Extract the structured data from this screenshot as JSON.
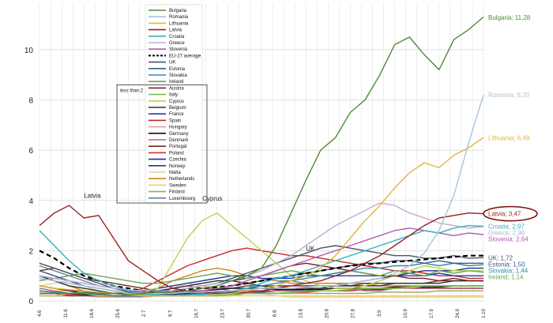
{
  "chart_data": {
    "type": "line",
    "grid": true,
    "ylim": [
      0,
      11.6
    ],
    "y_ticks": [
      0,
      2,
      4,
      6,
      8,
      10
    ],
    "x_tick_labels": [
      "4.6",
      "11.6",
      "18.6",
      "25.6",
      "2.7",
      "9.7",
      "16.7",
      "23.7",
      "30.7",
      "6.8",
      "13.8",
      "20.8",
      "27.8",
      "3.9",
      "10.9",
      "17.9",
      "24.9",
      "1.10"
    ],
    "legend_position": "upper-left-center",
    "legend_note": "less than 2",
    "series": [
      {
        "name": "Bulgaria",
        "color": "#4e8a3a",
        "end_label": "Bulgaria; 11,28",
        "end": 11.28,
        "values": [
          0.3,
          0.3,
          0.3,
          0.35,
          0.3,
          0.3,
          0.25,
          0.3,
          0.35,
          0.35,
          0.4,
          0.5,
          0.6,
          0.8,
          1.0,
          1.3,
          2.2,
          3.5,
          4.8,
          6.0,
          6.5,
          7.5,
          8.0,
          9.0,
          10.2,
          10.5,
          9.8,
          9.2,
          10.4,
          10.8,
          11.3
        ]
      },
      {
        "name": "Romania",
        "color": "#a8c4dc",
        "end_label": "Romania; 8,20",
        "end": 8.2,
        "values": [
          0.9,
          0.8,
          0.7,
          0.6,
          0.5,
          0.4,
          0.3,
          0.3,
          0.3,
          0.3,
          0.35,
          0.35,
          0.4,
          0.4,
          0.45,
          0.5,
          0.5,
          0.5,
          0.55,
          0.6,
          0.6,
          0.7,
          0.8,
          0.9,
          1.1,
          1.4,
          1.9,
          2.8,
          4.2,
          6.3,
          8.2
        ]
      },
      {
        "name": "Lithuania",
        "color": "#e0b83a",
        "end_label": "Lithuania; 6,49",
        "end": 6.49,
        "values": [
          0.6,
          0.5,
          0.45,
          0.4,
          0.35,
          0.3,
          0.25,
          0.2,
          0.2,
          0.2,
          0.2,
          0.2,
          0.25,
          0.3,
          0.4,
          0.5,
          0.6,
          0.8,
          1.0,
          1.3,
          1.8,
          2.5,
          3.2,
          3.8,
          4.5,
          5.1,
          5.5,
          5.3,
          5.8,
          6.1,
          6.5
        ]
      },
      {
        "name": "Latvia",
        "color": "#9c1f1f",
        "end_label": "Latvia; 3,47",
        "end": 3.47,
        "values": [
          3.0,
          3.5,
          3.8,
          3.3,
          3.4,
          2.5,
          1.6,
          1.2,
          0.8,
          0.5,
          0.4,
          0.35,
          0.3,
          0.3,
          0.35,
          0.4,
          0.5,
          0.6,
          0.7,
          0.8,
          1.0,
          1.2,
          1.5,
          1.8,
          2.2,
          2.6,
          3.0,
          3.3,
          3.4,
          3.5,
          3.47
        ]
      },
      {
        "name": "Croatia",
        "color": "#39b0c0",
        "end_label": "Croatia; 2,97",
        "end": 2.97,
        "values": [
          2.8,
          2.2,
          1.6,
          1.1,
          0.8,
          0.6,
          0.4,
          0.3,
          0.25,
          0.2,
          0.2,
          0.25,
          0.3,
          0.4,
          0.5,
          0.7,
          0.9,
          1.0,
          1.2,
          1.4,
          1.6,
          1.8,
          2.0,
          2.2,
          2.4,
          2.6,
          2.8,
          2.7,
          2.9,
          3.0,
          2.97
        ]
      },
      {
        "name": "Greece",
        "color": "#b8b0d4",
        "end_label": "Greece; 2,96",
        "end": 2.96,
        "values": [
          1.0,
          0.9,
          0.8,
          0.7,
          0.6,
          0.5,
          0.45,
          0.4,
          0.4,
          0.4,
          0.5,
          0.6,
          0.7,
          0.8,
          1.0,
          1.2,
          1.5,
          1.8,
          2.2,
          2.6,
          3.0,
          3.3,
          3.6,
          3.9,
          3.8,
          3.5,
          3.3,
          3.1,
          3.0,
          2.9,
          2.96
        ]
      },
      {
        "name": "Slovenia",
        "color": "#b45ab4",
        "end_label": "Slovenia; 2,64",
        "end": 2.64,
        "values": [
          1.0,
          0.9,
          0.8,
          0.7,
          0.6,
          0.5,
          0.4,
          0.35,
          0.3,
          0.3,
          0.35,
          0.4,
          0.5,
          0.6,
          0.8,
          1.0,
          1.2,
          1.4,
          1.6,
          1.8,
          2.0,
          2.2,
          2.4,
          2.6,
          2.8,
          2.9,
          2.8,
          2.7,
          2.6,
          2.7,
          2.64
        ]
      },
      {
        "name": "EU-27 average",
        "color": "#000000",
        "dashed": true,
        "end": 1.8,
        "values": [
          2.0,
          1.7,
          1.3,
          1.0,
          0.8,
          0.6,
          0.5,
          0.4,
          0.4,
          0.4,
          0.45,
          0.5,
          0.55,
          0.6,
          0.7,
          0.8,
          0.9,
          1.0,
          1.1,
          1.2,
          1.3,
          1.4,
          1.45,
          1.5,
          1.55,
          1.6,
          1.65,
          1.7,
          1.75,
          1.8,
          1.8
        ]
      },
      {
        "name": "UK",
        "color": "#4a5468",
        "end_label": "UK; 1,72",
        "end": 1.72,
        "values": [
          1.5,
          1.3,
          1.1,
          0.9,
          0.7,
          0.5,
          0.35,
          0.3,
          0.35,
          0.4,
          0.5,
          0.6,
          0.7,
          0.9,
          1.1,
          1.3,
          1.5,
          1.7,
          1.9,
          2.1,
          2.2,
          2.1,
          2.0,
          1.9,
          1.8,
          1.8,
          1.7,
          1.7,
          1.8,
          1.7,
          1.72
        ]
      },
      {
        "name": "Estonia",
        "color": "#3c5a8a",
        "end_label": "Estonia; 1,50",
        "end": 1.5,
        "values": [
          1.2,
          1.0,
          0.8,
          0.6,
          0.5,
          0.4,
          0.3,
          0.3,
          0.3,
          0.3,
          0.35,
          0.4,
          0.5,
          0.6,
          0.7,
          0.8,
          0.9,
          1.0,
          1.1,
          1.2,
          1.3,
          1.4,
          1.5,
          1.5,
          1.6,
          1.6,
          1.5,
          1.6,
          1.5,
          1.5,
          1.5
        ]
      },
      {
        "name": "Slovakia",
        "color": "#2b8fa8",
        "end_label": "Slovakia; 1,44",
        "end": 1.44,
        "values": [
          0.4,
          0.35,
          0.3,
          0.3,
          0.25,
          0.2,
          0.2,
          0.2,
          0.2,
          0.2,
          0.25,
          0.3,
          0.35,
          0.4,
          0.5,
          0.6,
          0.7,
          0.8,
          0.9,
          1.0,
          1.1,
          1.2,
          1.3,
          1.3,
          1.4,
          1.4,
          1.5,
          1.4,
          1.5,
          1.4,
          1.44
        ]
      },
      {
        "name": "Ireland",
        "color": "#6aa84f",
        "end_label": "Ireland; 1,14",
        "end": 1.14,
        "values": [
          0.8,
          0.9,
          1.0,
          1.1,
          1.0,
          0.9,
          0.8,
          0.7,
          0.7,
          0.8,
          0.9,
          1.0,
          1.1,
          1.0,
          0.9,
          1.0,
          1.1,
          1.2,
          1.1,
          1.0,
          1.1,
          1.2,
          1.1,
          1.0,
          1.2,
          1.1,
          1.0,
          1.2,
          1.1,
          1.2,
          1.14
        ]
      },
      {
        "name": "Austria",
        "color": "#7a2323",
        "values": [
          0.6,
          0.5,
          0.4,
          0.4,
          0.3,
          0.3,
          0.3,
          0.3,
          0.35,
          0.4,
          0.5,
          0.6,
          0.7,
          0.8,
          0.9,
          1.0,
          1.2,
          1.4,
          1.5,
          1.4,
          1.3,
          1.2,
          1.1,
          1.0,
          1.0,
          0.9,
          0.9,
          0.8,
          0.9,
          0.8,
          0.8
        ]
      },
      {
        "name": "Italy",
        "color": "#6cc04a",
        "values": [
          0.9,
          0.8,
          0.7,
          0.6,
          0.5,
          0.4,
          0.3,
          0.25,
          0.2,
          0.2,
          0.2,
          0.2,
          0.2,
          0.25,
          0.3,
          0.3,
          0.3,
          0.35,
          0.4,
          0.4,
          0.4,
          0.45,
          0.5,
          0.5,
          0.5,
          0.55,
          0.6,
          0.6,
          0.6,
          0.6,
          0.6
        ]
      },
      {
        "name": "Cyprus",
        "color": "#b8d44a",
        "values": [
          0.2,
          0.2,
          0.3,
          0.3,
          0.2,
          0.2,
          0.3,
          0.4,
          0.5,
          1.5,
          2.5,
          3.2,
          3.5,
          3.0,
          2.5,
          2.0,
          1.5,
          1.0,
          0.8,
          0.6,
          0.5,
          0.5,
          0.6,
          0.8,
          1.0,
          1.2,
          1.4,
          1.3,
          1.2,
          1.2,
          1.2
        ]
      },
      {
        "name": "Belgium",
        "color": "#2f2f2f",
        "values": [
          1.0,
          0.8,
          0.6,
          0.5,
          0.4,
          0.3,
          0.3,
          0.3,
          0.4,
          0.5,
          0.6,
          0.7,
          0.8,
          0.8,
          0.7,
          0.6,
          0.5,
          0.5,
          0.5,
          0.5,
          0.6,
          0.6,
          0.6,
          0.6,
          0.7,
          0.7,
          0.7,
          0.7,
          0.8,
          0.8,
          0.8
        ]
      },
      {
        "name": "France",
        "color": "#1f3fae",
        "values": [
          0.6,
          0.5,
          0.4,
          0.3,
          0.3,
          0.3,
          0.3,
          0.4,
          0.5,
          0.6,
          0.7,
          0.8,
          0.9,
          1.0,
          1.0,
          0.9,
          0.9,
          0.9,
          1.0,
          1.0,
          1.0,
          1.0,
          1.0,
          1.0,
          1.0,
          1.0,
          1.0,
          1.1,
          1.0,
          1.0,
          1.0
        ]
      },
      {
        "name": "Spain",
        "color": "#c62828",
        "values": [
          0.3,
          0.3,
          0.2,
          0.2,
          0.2,
          0.2,
          0.3,
          0.5,
          0.8,
          1.1,
          1.4,
          1.6,
          1.8,
          2.0,
          2.1,
          2.0,
          1.9,
          1.8,
          1.8,
          1.7,
          1.6,
          1.5,
          1.4,
          1.3,
          1.2,
          1.2,
          1.1,
          1.0,
          1.0,
          0.9,
          0.9
        ]
      },
      {
        "name": "Hungary",
        "color": "#d9a0a0",
        "values": [
          0.2,
          0.2,
          0.2,
          0.2,
          0.15,
          0.15,
          0.15,
          0.15,
          0.2,
          0.2,
          0.2,
          0.2,
          0.2,
          0.25,
          0.3,
          0.3,
          0.3,
          0.35,
          0.4,
          0.4,
          0.4,
          0.45,
          0.5,
          0.5,
          0.5,
          0.5,
          0.6,
          0.6,
          0.6,
          0.6,
          0.6
        ]
      },
      {
        "name": "Germany",
        "color": "#111111",
        "values": [
          0.4,
          0.35,
          0.3,
          0.25,
          0.2,
          0.2,
          0.2,
          0.2,
          0.25,
          0.3,
          0.35,
          0.4,
          0.45,
          0.5,
          0.5,
          0.5,
          0.45,
          0.45,
          0.45,
          0.45,
          0.5,
          0.5,
          0.5,
          0.5,
          0.55,
          0.55,
          0.55,
          0.55,
          0.6,
          0.6,
          0.6
        ]
      },
      {
        "name": "Denmark",
        "color": "#c0607a",
        "values": [
          0.5,
          0.4,
          0.3,
          0.3,
          0.2,
          0.2,
          0.2,
          0.3,
          0.4,
          0.5,
          0.6,
          0.5,
          0.5,
          0.4,
          0.4,
          0.4,
          0.4,
          0.4,
          0.4,
          0.5,
          0.5,
          0.5,
          0.4,
          0.4,
          0.5,
          0.5,
          0.5,
          0.5,
          0.5,
          0.5,
          0.5
        ]
      },
      {
        "name": "Portugal",
        "color": "#6a2e1e",
        "values": [
          1.2,
          1.3,
          1.1,
          0.9,
          0.8,
          0.7,
          0.6,
          0.5,
          0.4,
          0.4,
          0.4,
          0.4,
          0.5,
          0.5,
          0.6,
          0.6,
          0.6,
          0.6,
          0.6,
          0.6,
          0.6,
          0.6,
          0.7,
          0.7,
          0.7,
          0.7,
          0.7,
          0.8,
          0.8,
          0.8,
          0.8
        ]
      },
      {
        "name": "Poland",
        "color": "#d62d2d",
        "values": [
          0.3,
          0.3,
          0.25,
          0.2,
          0.2,
          0.2,
          0.2,
          0.2,
          0.2,
          0.2,
          0.2,
          0.2,
          0.25,
          0.3,
          0.3,
          0.3,
          0.3,
          0.35,
          0.35,
          0.4,
          0.4,
          0.4,
          0.45,
          0.5,
          0.5,
          0.5,
          0.5,
          0.5,
          0.5,
          0.5,
          0.5
        ]
      },
      {
        "name": "Czechia",
        "color": "#1c2f8a",
        "values": [
          0.3,
          0.3,
          0.3,
          0.2,
          0.2,
          0.2,
          0.2,
          0.2,
          0.25,
          0.3,
          0.3,
          0.3,
          0.3,
          0.3,
          0.3,
          0.35,
          0.4,
          0.4,
          0.45,
          0.5,
          0.6,
          0.7,
          0.8,
          0.9,
          1.0,
          1.1,
          1.2,
          1.2,
          1.2,
          1.3,
          1.3
        ]
      },
      {
        "name": "Norway",
        "color": "#2a3a6a",
        "values": [
          0.2,
          0.2,
          0.2,
          0.2,
          0.2,
          0.2,
          0.2,
          0.2,
          0.2,
          0.25,
          0.3,
          0.3,
          0.3,
          0.35,
          0.4,
          0.4,
          0.4,
          0.4,
          0.4,
          0.4,
          0.4,
          0.45,
          0.45,
          0.45,
          0.5,
          0.5,
          0.5,
          0.5,
          0.5,
          0.5,
          0.5
        ]
      },
      {
        "name": "Malta",
        "color": "#f0c8a0",
        "values": [
          0.6,
          0.7,
          0.8,
          0.6,
          0.4,
          0.3,
          0.2,
          0.2,
          0.3,
          0.5,
          0.7,
          0.6,
          0.5,
          0.4,
          0.3,
          0.3,
          0.2,
          0.2,
          0.2,
          0.2,
          0.2,
          0.2,
          0.2,
          0.2,
          0.2,
          0.2,
          0.2,
          0.2,
          0.2,
          0.2,
          0.2
        ]
      },
      {
        "name": "Netherlands",
        "color": "#d4821f",
        "values": [
          1.0,
          0.8,
          0.6,
          0.4,
          0.3,
          0.2,
          0.2,
          0.3,
          0.5,
          0.8,
          1.0,
          1.2,
          1.3,
          1.2,
          1.0,
          0.9,
          0.8,
          0.7,
          0.7,
          0.7,
          0.7,
          0.7,
          0.7,
          0.6,
          0.6,
          0.6,
          0.6,
          0.6,
          0.6,
          0.6,
          0.6
        ]
      },
      {
        "name": "Sweden",
        "color": "#e8d84a",
        "values": [
          0.5,
          0.4,
          0.4,
          0.3,
          0.3,
          0.2,
          0.2,
          0.2,
          0.2,
          0.2,
          0.2,
          0.2,
          0.2,
          0.2,
          0.2,
          0.2,
          0.2,
          0.15,
          0.15,
          0.15,
          0.15,
          0.15,
          0.15,
          0.15,
          0.15,
          0.15,
          0.15,
          0.15,
          0.15,
          0.15,
          0.15
        ]
      },
      {
        "name": "Finland",
        "color": "#9aa85a",
        "values": [
          0.3,
          0.3,
          0.3,
          0.2,
          0.2,
          0.2,
          0.2,
          0.2,
          0.2,
          0.2,
          0.2,
          0.2,
          0.2,
          0.2,
          0.3,
          0.3,
          0.3,
          0.3,
          0.3,
          0.3,
          0.3,
          0.3,
          0.3,
          0.35,
          0.35,
          0.35,
          0.35,
          0.4,
          0.4,
          0.4,
          0.4
        ]
      },
      {
        "name": "Luxembourg",
        "color": "#5a8aa8",
        "values": [
          1.4,
          1.2,
          1.0,
          0.8,
          0.6,
          0.5,
          0.4,
          0.4,
          0.5,
          0.6,
          0.7,
          0.8,
          0.9,
          1.0,
          1.0,
          0.9,
          0.8,
          0.8,
          0.7,
          0.7,
          0.7,
          0.6,
          0.6,
          0.6,
          0.6,
          0.6,
          0.5,
          0.5,
          0.5,
          0.5,
          0.5
        ]
      }
    ],
    "annotations": [
      {
        "text": "Latvia",
        "x_index": 3,
        "y": 4.1
      },
      {
        "text": "Cyprus",
        "x_index": 11,
        "y": 4.0
      },
      {
        "text": "UK",
        "x_index": 18,
        "y": 2.0
      }
    ]
  }
}
